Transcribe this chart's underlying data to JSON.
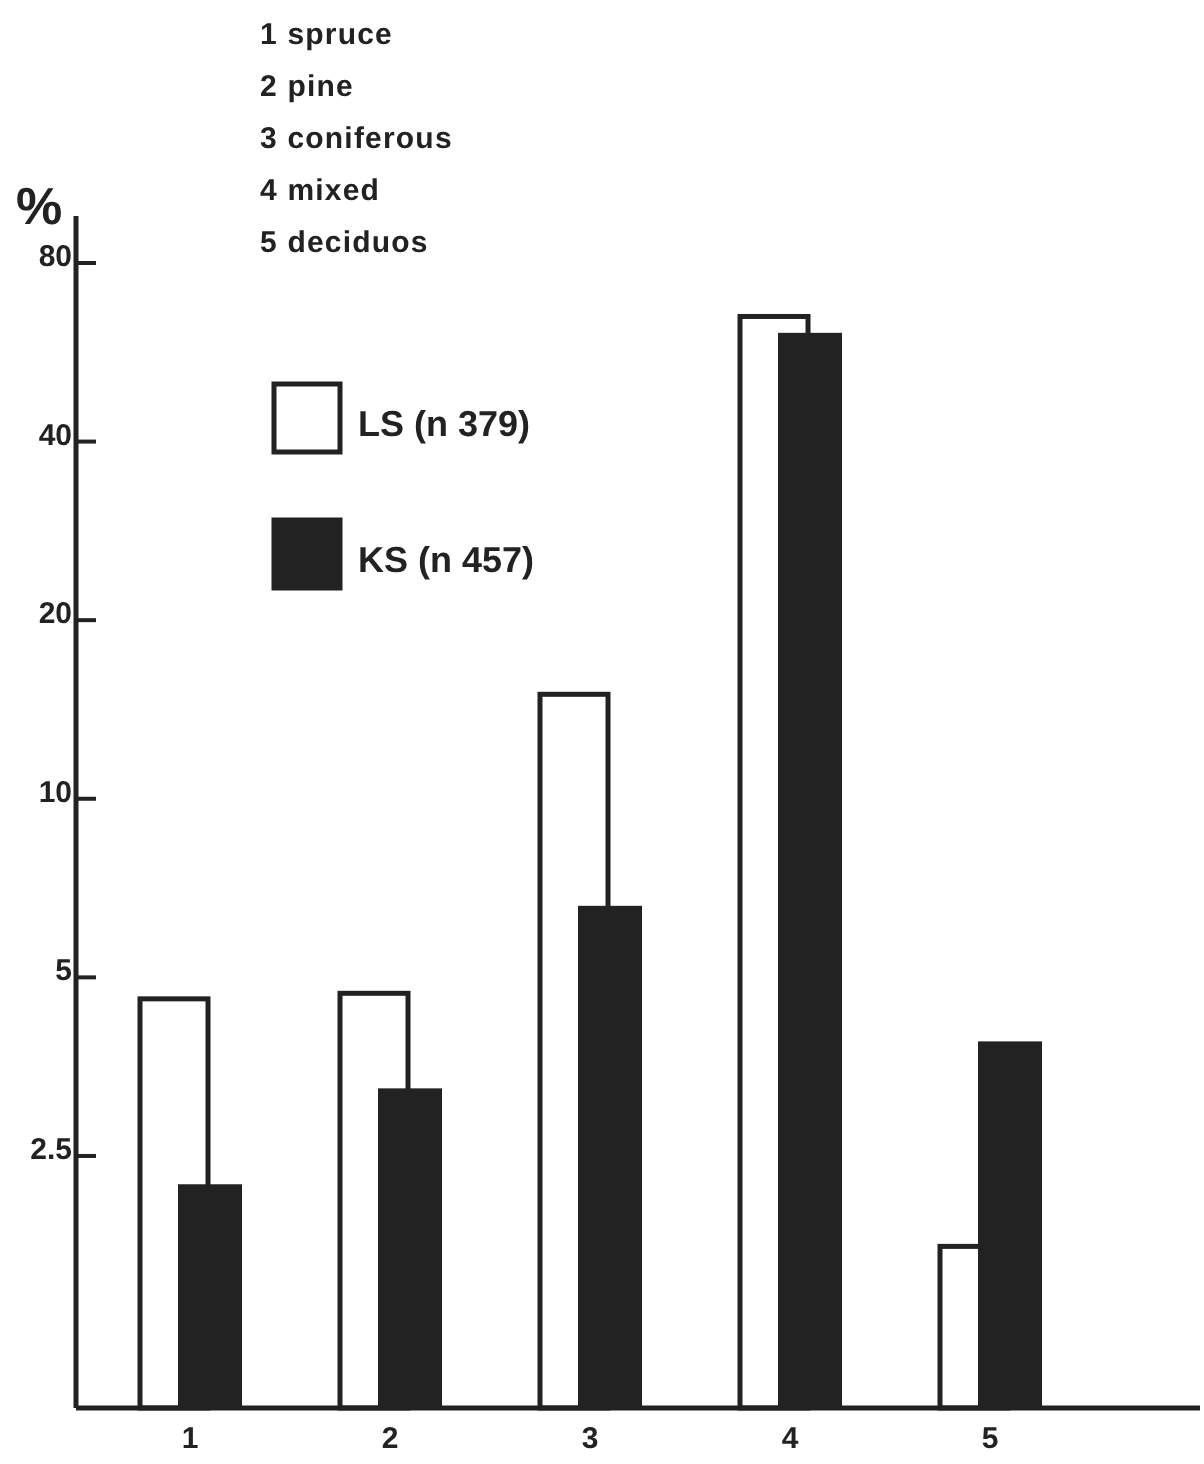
{
  "chart_data": {
    "type": "bar",
    "ylabel": "%",
    "categories": [
      "1",
      "2",
      "3",
      "4",
      "5"
    ],
    "series": [
      {
        "name": "LS (n 379)",
        "color": "#ffffff",
        "values": [
          4.6,
          4.7,
          15,
          65,
          1.76
        ]
      },
      {
        "name": "KS (n 457)",
        "color": "#222222",
        "values": [
          2.24,
          3.25,
          6.6,
          61,
          3.9
        ]
      }
    ],
    "log": true,
    "ylim": [
      0.94,
      96
    ],
    "yticks": [
      2.5,
      5,
      10,
      20,
      40,
      80
    ],
    "grid": false,
    "legend": "top left",
    "annotations": [
      "1 spruce",
      "2 pine",
      "3 coniferous",
      "4 mixed",
      "5 deciduos"
    ]
  }
}
